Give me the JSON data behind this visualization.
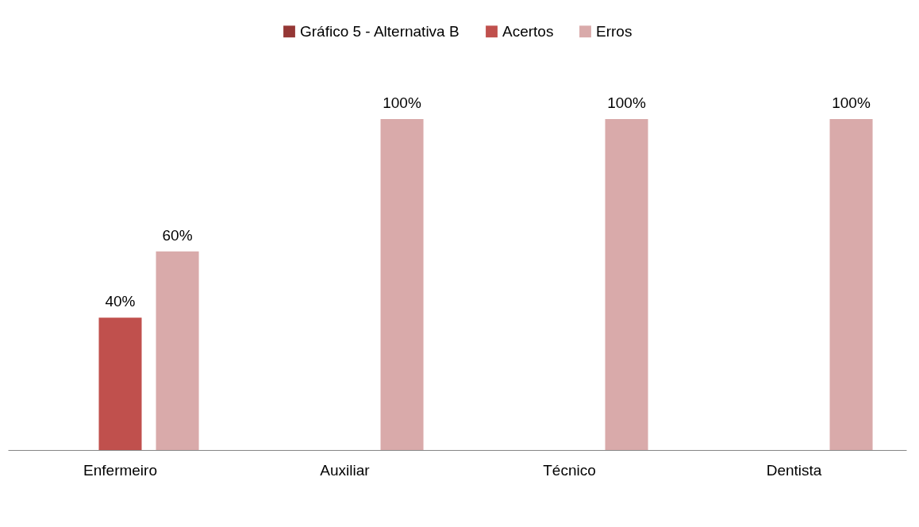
{
  "chart_data": {
    "type": "bar",
    "categories": [
      "Enfermeiro",
      "Auxiliar",
      "Técnico",
      "Dentista"
    ],
    "series": [
      {
        "name": "Gráfico 5 - Alternativa B",
        "color": "#953735",
        "values": [
          null,
          null,
          null,
          null
        ]
      },
      {
        "name": "Acertos",
        "color": "#c0504d",
        "values": [
          40,
          null,
          null,
          null
        ],
        "value_labels": [
          "40%",
          null,
          null,
          null
        ]
      },
      {
        "name": "Erros",
        "color": "#d9aaaa",
        "values": [
          60,
          100,
          100,
          100
        ],
        "value_labels": [
          "60%",
          "100%",
          "100%",
          "100%"
        ]
      }
    ],
    "legend": "top",
    "tick_labels": "x"
  }
}
